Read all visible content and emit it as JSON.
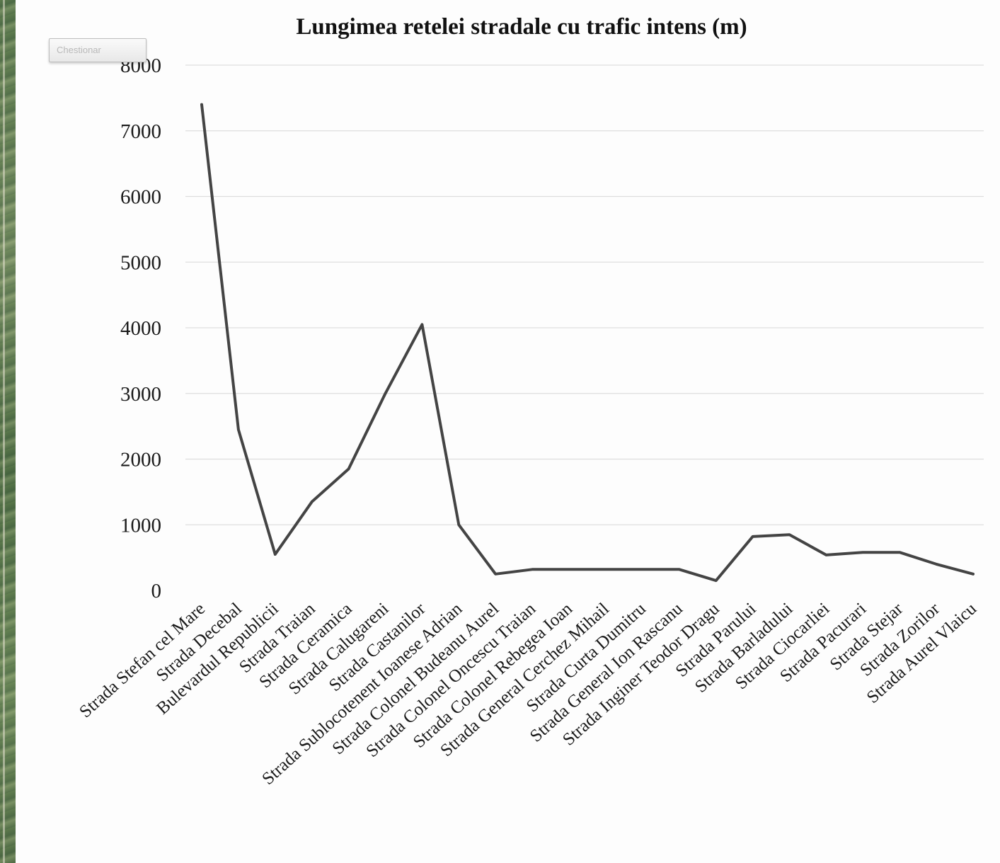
{
  "legend_button": {
    "label": "Chestionar"
  },
  "chart_data": {
    "type": "line",
    "title": "Lungimea retelei stradale cu trafic intens (m)",
    "xlabel": "",
    "ylabel": "",
    "ylim": [
      0,
      8000
    ],
    "yticks": [
      0,
      1000,
      2000,
      3000,
      4000,
      5000,
      6000,
      7000,
      8000
    ],
    "grid": true,
    "line_color": "#444444",
    "categories": [
      "Strada Stefan cel Mare",
      "Strada Decebal",
      "Bulevardul Republicii",
      "Strada Traian",
      "Strada Ceramica",
      "Strada Calugareni",
      "Strada Castanilor",
      "Strada Sublocotenent Ioanese Adrian",
      "Strada Colonel Budeanu Aurel",
      "Strada Colonel Oncescu Traian",
      "Strada Colonel Rebegea Ioan",
      "Strada General Cerchez Mihail",
      "Strada Curta Dumitru",
      "Strada General Ion Rascanu",
      "Strada Inginer Teodor Dragu",
      "Strada Parului",
      "Strada Barladului",
      "Strada Ciocarliei",
      "Strada Pacurari",
      "Strada Stejar",
      "Strada Zorilor",
      "Strada Aurel Vlaicu"
    ],
    "values": [
      7400,
      2450,
      550,
      1350,
      1850,
      3000,
      4050,
      1000,
      250,
      320,
      320,
      320,
      320,
      320,
      150,
      820,
      850,
      540,
      580,
      580,
      400,
      250
    ]
  }
}
